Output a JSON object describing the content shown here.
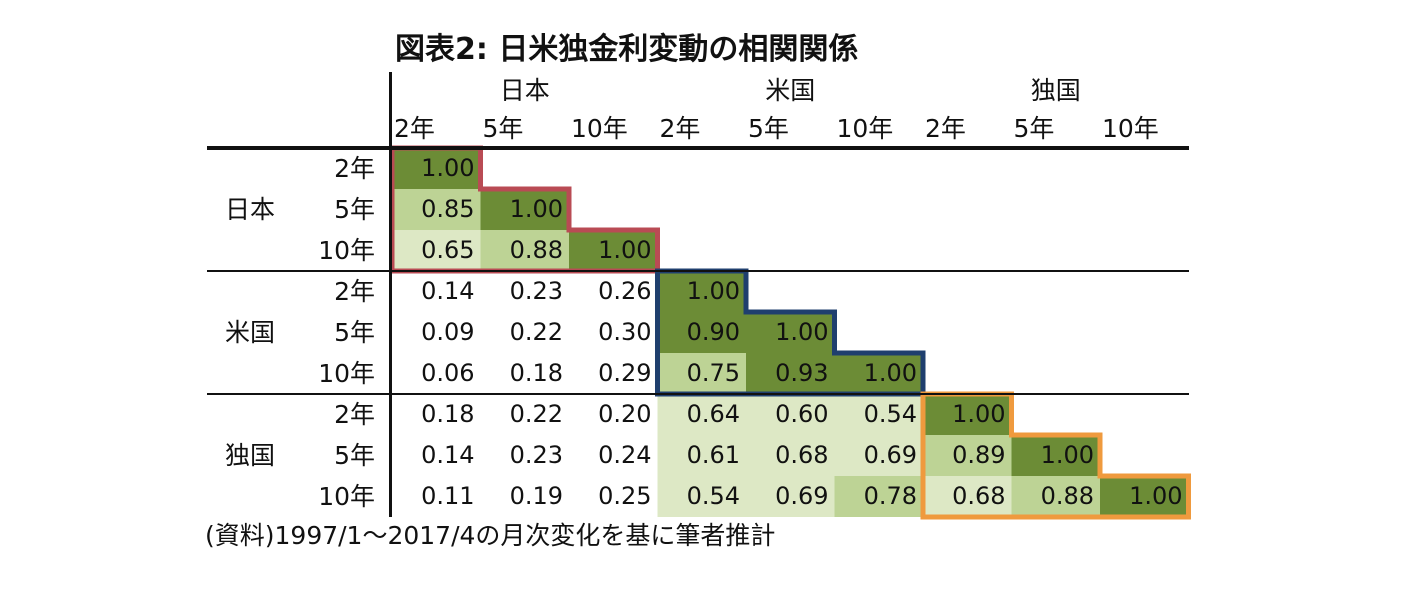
{
  "title": "図表2: 日米独金利変動の相関関係",
  "source": "(資料)1997/1〜2017/4の月次変化を基に筆者推計",
  "colors": {
    "high": "#6c8c36",
    "mid": "#bdd395",
    "low": "#dde8c5",
    "frame_japan": "#b94b54",
    "frame_us": "#1f3f6e",
    "frame_germany": "#ef9a3e"
  },
  "chart_data": {
    "type": "heatmap",
    "title": "図表2: 日米独金利変動の相関関係",
    "groups": [
      "日本",
      "米国",
      "独国"
    ],
    "maturities": [
      "2年",
      "5年",
      "10年"
    ],
    "columns": [
      {
        "group": "日本",
        "maturity": "2年"
      },
      {
        "group": "日本",
        "maturity": "5年"
      },
      {
        "group": "日本",
        "maturity": "10年"
      },
      {
        "group": "米国",
        "maturity": "2年"
      },
      {
        "group": "米国",
        "maturity": "5年"
      },
      {
        "group": "米国",
        "maturity": "10年"
      },
      {
        "group": "独国",
        "maturity": "2年"
      },
      {
        "group": "独国",
        "maturity": "5年"
      },
      {
        "group": "独国",
        "maturity": "10年"
      }
    ],
    "rows": [
      {
        "group": "日本",
        "maturity": "2年"
      },
      {
        "group": "日本",
        "maturity": "5年"
      },
      {
        "group": "日本",
        "maturity": "10年"
      },
      {
        "group": "米国",
        "maturity": "2年"
      },
      {
        "group": "米国",
        "maturity": "5年"
      },
      {
        "group": "米国",
        "maturity": "10年"
      },
      {
        "group": "独国",
        "maturity": "2年"
      },
      {
        "group": "独国",
        "maturity": "5年"
      },
      {
        "group": "独国",
        "maturity": "10年"
      }
    ],
    "values": [
      [
        "1.00"
      ],
      [
        "0.85",
        "1.00"
      ],
      [
        "0.65",
        "0.88",
        "1.00"
      ],
      [
        "0.14",
        "0.23",
        "0.26",
        "1.00"
      ],
      [
        "0.09",
        "0.22",
        "0.30",
        "0.90",
        "1.00"
      ],
      [
        "0.06",
        "0.18",
        "0.29",
        "0.75",
        "0.93",
        "1.00"
      ],
      [
        "0.18",
        "0.22",
        "0.20",
        "0.64",
        "0.60",
        "0.54",
        "1.00"
      ],
      [
        "0.14",
        "0.23",
        "0.24",
        "0.61",
        "0.68",
        "0.69",
        "0.89",
        "1.00"
      ],
      [
        "0.11",
        "0.19",
        "0.25",
        "0.54",
        "0.69",
        "0.78",
        "0.68",
        "0.88",
        "1.00"
      ]
    ],
    "cell_shading": [
      [
        "high"
      ],
      [
        "mid",
        "high"
      ],
      [
        "low",
        "mid",
        "high"
      ],
      [
        "none",
        "none",
        "none",
        "high"
      ],
      [
        "none",
        "none",
        "none",
        "high",
        "high"
      ],
      [
        "none",
        "none",
        "none",
        "mid",
        "high",
        "high"
      ],
      [
        "none",
        "none",
        "none",
        "low",
        "low",
        "low",
        "high"
      ],
      [
        "none",
        "none",
        "none",
        "low",
        "low",
        "low",
        "mid",
        "high"
      ],
      [
        "none",
        "none",
        "none",
        "low",
        "low",
        "mid",
        "low",
        "mid",
        "high"
      ]
    ],
    "highlight_blocks": [
      {
        "group": "日本",
        "color": "frame_japan"
      },
      {
        "group": "米国",
        "color": "frame_us"
      },
      {
        "group": "独国",
        "color": "frame_germany"
      }
    ]
  }
}
